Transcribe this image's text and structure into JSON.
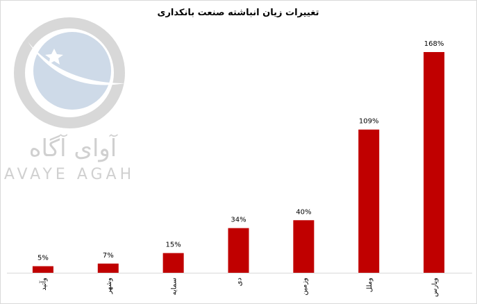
{
  "chart_data": {
    "type": "bar",
    "title": "تغییرات زیان انباشته صنعت بانکداری",
    "categories": [
      "وآتید",
      "وشهر",
      "سمایه",
      "دی",
      "وزمین",
      "وملل",
      "وپارس"
    ],
    "values": [
      5,
      7,
      15,
      34,
      40,
      109,
      168
    ],
    "value_labels": [
      "5%",
      "7%",
      "15%",
      "34%",
      "40%",
      "109%",
      "168%"
    ],
    "color": "#c00000",
    "watermark": {
      "name": "آوای آگاه",
      "latin": "AVAYE AGAH"
    }
  }
}
